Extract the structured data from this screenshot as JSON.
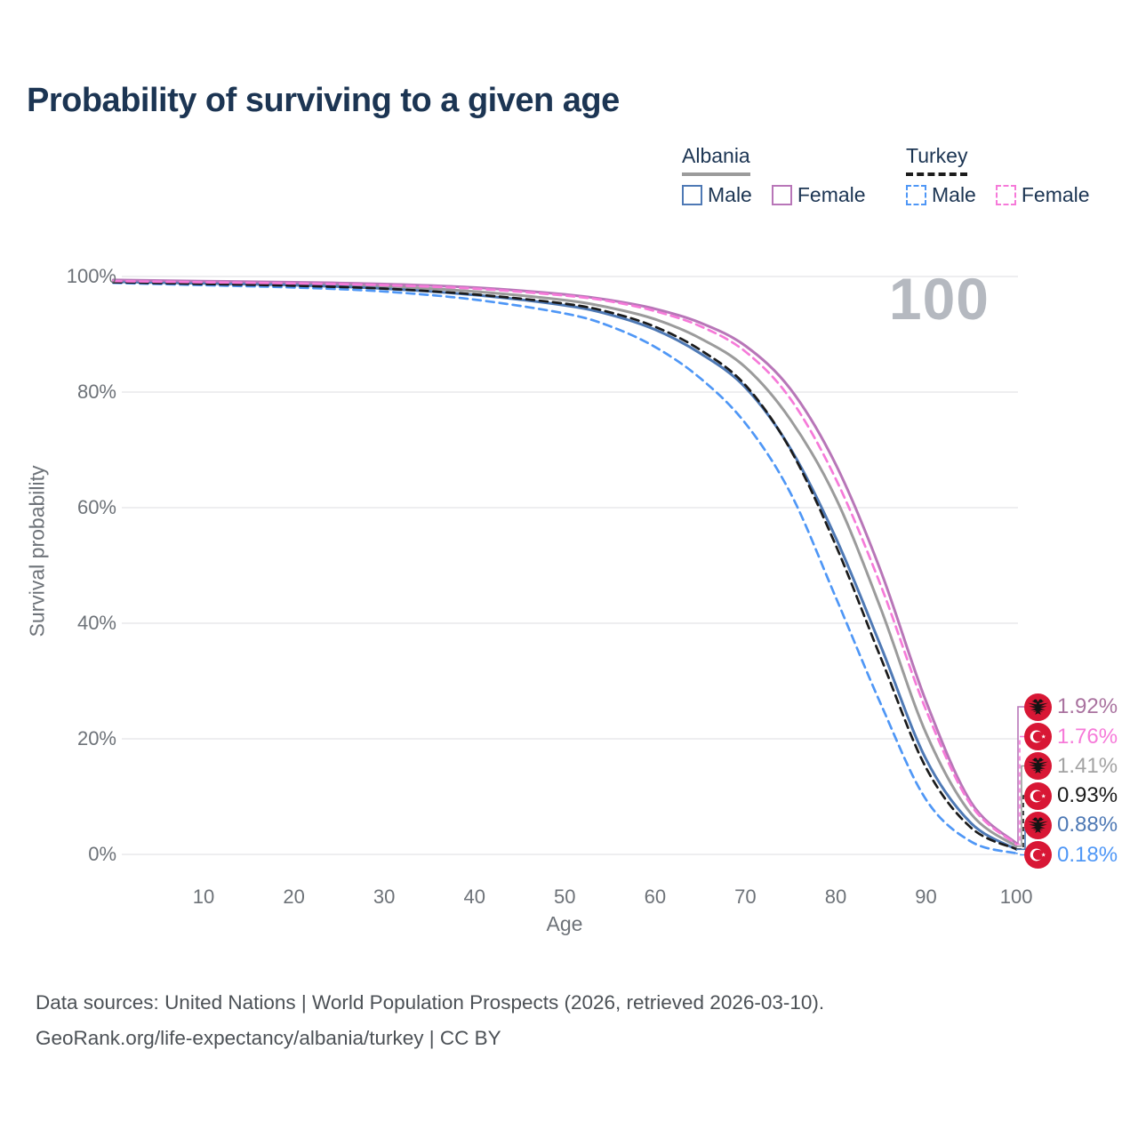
{
  "title": "Probability of surviving to a given age",
  "watermark": "100",
  "legend": {
    "groups": [
      {
        "country": "Albania",
        "line_style": "solid",
        "underline_color": "#9b9b9b",
        "items": [
          {
            "label": "Male",
            "color": "#4e79b5",
            "dashed": false
          },
          {
            "label": "Female",
            "color": "#b876b8",
            "dashed": false
          }
        ]
      },
      {
        "country": "Turkey",
        "line_style": "dashed",
        "underline_color": "#1b1b1b",
        "items": [
          {
            "label": "Male",
            "color": "#4f97f6",
            "dashed": true
          },
          {
            "label": "Female",
            "color": "#f67ad9",
            "dashed": true
          }
        ]
      }
    ]
  },
  "axes": {
    "x": {
      "label": "Age",
      "min": 0,
      "max": 100,
      "ticks": [
        10,
        20,
        30,
        40,
        50,
        60,
        70,
        80,
        90,
        100
      ]
    },
    "y": {
      "label": "Survival probability",
      "min": 0,
      "max": 100,
      "ticks": [
        {
          "value": 100,
          "label": "100%"
        },
        {
          "value": 80,
          "label": "80%"
        },
        {
          "value": 60,
          "label": "60%"
        },
        {
          "value": 40,
          "label": "40%"
        },
        {
          "value": 20,
          "label": "20%"
        },
        {
          "value": 0,
          "label": "0%"
        }
      ]
    }
  },
  "chart_data": {
    "type": "line",
    "title": "Probability of surviving to a given age",
    "xlabel": "Age",
    "ylabel": "Survival probability",
    "xlim": [
      0,
      100
    ],
    "ylim": [
      0,
      100
    ],
    "grid": "horizontal",
    "legend_position": "top-right",
    "ages": [
      0,
      10,
      20,
      30,
      40,
      50,
      55,
      60,
      65,
      70,
      75,
      80,
      85,
      90,
      95,
      100
    ],
    "series": [
      {
        "name": "Albania Overall",
        "country": "Albania",
        "sex": "all",
        "color": "#9b9b9b",
        "dashed": false,
        "values": [
          99.2,
          99.0,
          98.7,
          98.3,
          97.4,
          95.9,
          94.6,
          92.6,
          89.3,
          84.3,
          75.2,
          61.7,
          42.5,
          21.0,
          7.0,
          1.41
        ]
      },
      {
        "name": "Albania Male",
        "country": "Albania",
        "sex": "male",
        "color": "#4e79b5",
        "dashed": false,
        "values": [
          99.1,
          98.8,
          98.5,
          97.9,
          96.8,
          95.0,
          93.4,
          90.8,
          86.7,
          80.8,
          70.2,
          54.8,
          36.0,
          16.5,
          5.4,
          0.88
        ]
      },
      {
        "name": "Albania Female",
        "country": "Albania",
        "sex": "female",
        "color": "#b876b8",
        "dashed": false,
        "values": [
          99.4,
          99.2,
          99.0,
          98.7,
          98.1,
          96.9,
          95.9,
          94.4,
          92.0,
          88.0,
          80.5,
          67.5,
          49.0,
          26.5,
          9.0,
          1.92
        ]
      },
      {
        "name": "Turkey Male",
        "country": "Turkey",
        "sex": "male",
        "color": "#4f97f6",
        "dashed": true,
        "values": [
          98.9,
          98.5,
          98.1,
          97.4,
          96.0,
          93.6,
          91.4,
          87.8,
          82.4,
          74.6,
          62.5,
          44.5,
          26.0,
          9.5,
          2.2,
          0.18
        ]
      },
      {
        "name": "Turkey Overall",
        "country": "Turkey",
        "sex": "all",
        "color": "#1b1b1b",
        "dashed": true,
        "values": [
          99.0,
          98.7,
          98.4,
          97.9,
          96.9,
          95.3,
          93.8,
          91.3,
          87.3,
          81.2,
          70.0,
          53.5,
          34.0,
          15.0,
          4.6,
          0.93
        ]
      },
      {
        "name": "Turkey Female",
        "country": "Turkey",
        "sex": "female",
        "color": "#f67ad9",
        "dashed": true,
        "values": [
          99.2,
          99.0,
          98.8,
          98.5,
          97.9,
          96.7,
          95.7,
          94.0,
          91.4,
          87.0,
          78.8,
          65.0,
          46.5,
          25.0,
          8.5,
          1.76
        ]
      }
    ],
    "end_annotations": [
      {
        "label": "1.92%",
        "value": 1.92,
        "series": "Albania Female",
        "flag": "albania-flag-icon",
        "color": "#a9729f",
        "dashed": false
      },
      {
        "label": "1.76%",
        "value": 1.76,
        "series": "Turkey Female",
        "flag": "turkey-flag-icon",
        "color": "#f67ad9",
        "dashed": true
      },
      {
        "label": "1.41%",
        "value": 1.41,
        "series": "Albania Overall",
        "flag": "albania-flag-icon",
        "color": "#a3a3a3",
        "dashed": false
      },
      {
        "label": "0.93%",
        "value": 0.93,
        "series": "Turkey Overall",
        "flag": "turkey-flag-icon",
        "color": "#1b1b1b",
        "dashed": true
      },
      {
        "label": "0.88%",
        "value": 0.88,
        "series": "Albania Male",
        "flag": "albania-flag-icon",
        "color": "#4e79b5",
        "dashed": false
      },
      {
        "label": "0.18%",
        "value": 0.18,
        "series": "Turkey Male",
        "flag": "turkey-flag-icon",
        "color": "#4f97f6",
        "dashed": true
      }
    ]
  },
  "footer": {
    "line1": "Data sources: United Nations | World Population Prospects (2026, retrieved 2026-03-10).",
    "line2": "GeoRank.org/life-expectancy/albania/turkey | CC BY"
  },
  "colors": {
    "title": "#1c3553",
    "gridline": "#e9e9eb",
    "axis_text": "#6d7278",
    "watermark": "#b5b9c0",
    "flag_red": "#d81735"
  }
}
